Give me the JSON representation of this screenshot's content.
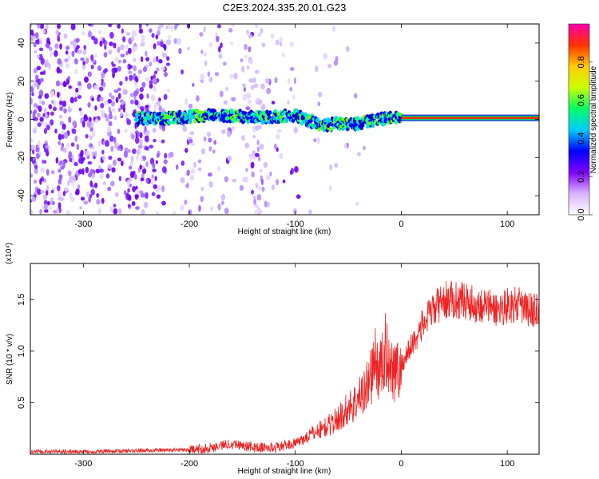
{
  "title": "C2E3.2024.335.20.01.G23",
  "chart_data": [
    {
      "type": "heatmap",
      "xlabel": "Height of straight line (km)",
      "ylabel": "Frequency (Hz)",
      "xlim": [
        -350,
        130
      ],
      "ylim": [
        -50,
        50
      ],
      "xticks": [
        -300,
        -200,
        -100,
        0,
        100
      ],
      "yticks": [
        -40,
        -20,
        0,
        20,
        40
      ],
      "colorbar": {
        "label": "Normalized spectral amplitude",
        "range": [
          0,
          1
        ],
        "ticks": [
          "0.0",
          "0.2",
          "0.4",
          "0.6",
          "0.8"
        ],
        "tick_values": [
          0,
          0.2,
          0.4,
          0.6,
          0.8
        ],
        "colors": [
          "#ffffff",
          "#d9b3ff",
          "#8000ff",
          "#0000ff",
          "#00ccff",
          "#00ff66",
          "#ccff00",
          "#ffcc00",
          "#ff3300",
          "#ff00aa"
        ]
      },
      "ridge": [
        {
          "x": -250,
          "f": 0.5
        },
        {
          "x": -220,
          "f": 0.5
        },
        {
          "x": -200,
          "f": 1.5
        },
        {
          "x": -180,
          "f": 2
        },
        {
          "x": -160,
          "f": 2
        },
        {
          "x": -140,
          "f": 1
        },
        {
          "x": -120,
          "f": 1.5
        },
        {
          "x": -100,
          "f": 2
        },
        {
          "x": -90,
          "f": 0
        },
        {
          "x": -80,
          "f": -2
        },
        {
          "x": -70,
          "f": -3
        },
        {
          "x": -60,
          "f": -2
        },
        {
          "x": -50,
          "f": -3
        },
        {
          "x": -40,
          "f": -2
        },
        {
          "x": -30,
          "f": -1
        },
        {
          "x": -20,
          "f": 0
        },
        {
          "x": -10,
          "f": 1
        },
        {
          "x": 0,
          "f": 1
        },
        {
          "x": 130,
          "f": 0.5
        }
      ]
    },
    {
      "type": "line",
      "xlabel": "Height of straight line (km)",
      "ylabel": "SNR (10 * v/v)",
      "y_multiplier": "(x10⁴)",
      "xlim": [
        -350,
        130
      ],
      "ylim": [
        0,
        1.85
      ],
      "xticks": [
        -300,
        -200,
        -100,
        0,
        100
      ],
      "yticks": [
        0.5,
        1.0,
        1.5
      ],
      "ytick_labels": [
        "0.5",
        "1.0",
        "1.5"
      ],
      "series": [
        {
          "color": "#ee2222",
          "x": [
            -350,
            -300,
            -250,
            -200,
            -180,
            -160,
            -140,
            -120,
            -100,
            -90,
            -80,
            -70,
            -60,
            -50,
            -40,
            -30,
            -25,
            -20,
            -15,
            -10,
            -5,
            0,
            10,
            20,
            30,
            40,
            50,
            60,
            70,
            80,
            90,
            100,
            110,
            120,
            130
          ],
          "y": [
            0.03,
            0.03,
            0.04,
            0.05,
            0.08,
            0.12,
            0.08,
            0.08,
            0.12,
            0.18,
            0.25,
            0.3,
            0.38,
            0.5,
            0.6,
            0.8,
            1.0,
            0.9,
            1.1,
            1.0,
            0.9,
            0.9,
            1.1,
            1.3,
            1.45,
            1.55,
            1.55,
            1.55,
            1.5,
            1.5,
            1.45,
            1.5,
            1.5,
            1.45,
            1.45
          ]
        }
      ]
    }
  ]
}
